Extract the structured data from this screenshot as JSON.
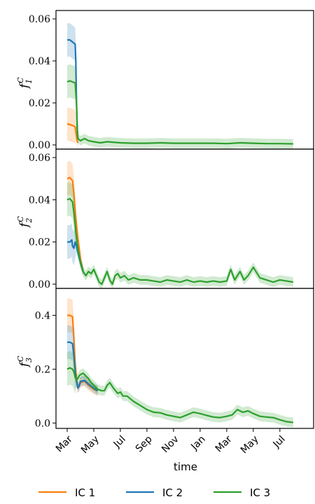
{
  "chart_data": {
    "type": "line",
    "xlabel": "time",
    "x_tick_labels": [
      "Mar",
      "May",
      "Jul",
      "Sep",
      "Nov",
      "Jan",
      "Mar",
      "May",
      "Jul"
    ],
    "x_range_months": [
      0,
      17.3
    ],
    "series_names": [
      "IC 1",
      "IC 2",
      "IC 3"
    ],
    "colors": {
      "IC 1": "#ff7f0e",
      "IC 2": "#1f77b4",
      "IC 3": "#2ca02c"
    },
    "legend_placement": "bottom-center",
    "grid": false,
    "panels": [
      {
        "ylabel_base": "f",
        "ylabel_sup": "C",
        "ylabel_sub": "1",
        "ylim": [
          -0.002,
          0.064
        ],
        "yticks": [
          0.0,
          0.02,
          0.04,
          0.06
        ],
        "ytick_labels": [
          "0.00",
          "0.02",
          "0.04",
          "0.06"
        ],
        "series": [
          {
            "name": "IC 1",
            "x": [
              0,
              0.3,
              0.5,
              0.6,
              0.7,
              0.75,
              0.8
            ],
            "y": [
              0.01,
              0.0095,
              0.009,
              0.0085,
              0.004,
              0.002,
              0.001
            ]
          },
          {
            "name": "IC 2",
            "x": [
              0,
              0.2,
              0.4,
              0.6,
              0.65,
              0.7,
              0.75,
              0.8
            ],
            "y": [
              0.05,
              0.05,
              0.049,
              0.048,
              0.04,
              0.02,
              0.008,
              0.003
            ]
          },
          {
            "name": "IC 3",
            "x": [
              0,
              0.2,
              0.4,
              0.6,
              0.7,
              0.75,
              0.8,
              1.0,
              1.3,
              1.6,
              2.0,
              2.5,
              3.0,
              4.0,
              5.0,
              6.0,
              7.0,
              8.0,
              9.0,
              10.0,
              11.0,
              12.0,
              13.0,
              14.0,
              15.0,
              16.0,
              17.0
            ],
            "y": [
              0.03,
              0.0305,
              0.03,
              0.0295,
              0.02,
              0.01,
              0.003,
              0.002,
              0.003,
              0.002,
              0.0015,
              0.001,
              0.0015,
              0.001,
              0.0008,
              0.0008,
              0.001,
              0.0008,
              0.0008,
              0.0008,
              0.0008,
              0.0006,
              0.001,
              0.0008,
              0.0006,
              0.0006,
              0.0005
            ]
          }
        ]
      },
      {
        "ylabel_base": "f",
        "ylabel_sup": "C",
        "ylabel_sub": "2",
        "ylim": [
          -0.002,
          0.064
        ],
        "yticks": [
          0.0,
          0.02,
          0.04,
          0.06
        ],
        "ytick_labels": [
          "0.00",
          "0.02",
          "0.04",
          "0.06"
        ],
        "series": [
          {
            "name": "IC 1",
            "x": [
              0,
              0.2,
              0.4,
              0.5,
              0.6,
              0.7,
              0.8,
              1.0,
              1.2
            ],
            "y": [
              0.05,
              0.0505,
              0.049,
              0.043,
              0.035,
              0.028,
              0.022,
              0.012,
              0.006
            ]
          },
          {
            "name": "IC 2",
            "x": [
              0,
              0.2,
              0.35,
              0.4,
              0.5,
              0.6,
              0.7,
              0.8,
              1.0,
              1.2
            ],
            "y": [
              0.02,
              0.02,
              0.021,
              0.018,
              0.017,
              0.02,
              0.018,
              0.015,
              0.01,
              0.006
            ]
          },
          {
            "name": "IC 3",
            "x": [
              0,
              0.2,
              0.4,
              0.5,
              0.6,
              0.7,
              0.8,
              1.0,
              1.2,
              1.4,
              1.6,
              1.8,
              2.0,
              2.2,
              2.4,
              2.6,
              2.8,
              3.0,
              3.2,
              3.4,
              3.6,
              3.8,
              4.0,
              4.3,
              4.6,
              5.0,
              5.5,
              6.0,
              6.5,
              7.0,
              7.5,
              8.0,
              8.5,
              9.0,
              9.5,
              10.0,
              10.5,
              11.0,
              11.5,
              12.0,
              12.3,
              12.6,
              13.0,
              13.3,
              13.6,
              14.0,
              14.5,
              15.0,
              15.5,
              16.0,
              16.5,
              17.0
            ],
            "y": [
              0.04,
              0.0405,
              0.039,
              0.034,
              0.028,
              0.022,
              0.017,
              0.01,
              0.006,
              0.004,
              0.006,
              0.005,
              0.007,
              0.004,
              0.001,
              0.0,
              0.003,
              0.006,
              0.002,
              0.0,
              0.004,
              0.005,
              0.003,
              0.004,
              0.002,
              0.003,
              0.002,
              0.002,
              0.0015,
              0.001,
              0.002,
              0.0015,
              0.001,
              0.002,
              0.001,
              0.0015,
              0.001,
              0.0015,
              0.001,
              0.0015,
              0.007,
              0.002,
              0.006,
              0.002,
              0.004,
              0.008,
              0.003,
              0.002,
              0.001,
              0.002,
              0.0015,
              0.001
            ]
          }
        ]
      },
      {
        "ylabel_base": "f",
        "ylabel_sup": "C",
        "ylabel_sub": "3",
        "ylim": [
          -0.02,
          0.5
        ],
        "yticks": [
          0.0,
          0.2,
          0.4
        ],
        "ytick_labels": [
          "0.0",
          "0.2",
          "0.4"
        ],
        "series": [
          {
            "name": "IC 1",
            "x": [
              0,
              0.2,
              0.4,
              0.5,
              0.6,
              0.7,
              0.8,
              0.9,
              1.0,
              1.3,
              1.6,
              2.0,
              2.3
            ],
            "y": [
              0.4,
              0.4,
              0.395,
              0.32,
              0.22,
              0.17,
              0.13,
              0.135,
              0.15,
              0.155,
              0.14,
              0.125,
              0.12
            ]
          },
          {
            "name": "IC 2",
            "x": [
              0,
              0.2,
              0.4,
              0.5,
              0.6,
              0.7,
              0.8,
              0.9,
              1.0,
              1.3,
              1.6,
              2.0,
              2.3
            ],
            "y": [
              0.3,
              0.3,
              0.295,
              0.25,
              0.19,
              0.155,
              0.13,
              0.14,
              0.155,
              0.158,
              0.145,
              0.13,
              0.12
            ]
          },
          {
            "name": "IC 3",
            "x": [
              0,
              0.2,
              0.4,
              0.5,
              0.6,
              0.7,
              0.8,
              0.9,
              1.0,
              1.2,
              1.4,
              1.6,
              1.8,
              2.0,
              2.3,
              2.6,
              2.8,
              3.0,
              3.2,
              3.5,
              3.8,
              4.0,
              4.2,
              4.5,
              5.0,
              5.5,
              6.0,
              6.5,
              7.0,
              7.5,
              8.0,
              8.5,
              9.0,
              9.5,
              10.0,
              10.5,
              11.0,
              11.5,
              12.0,
              12.4,
              12.8,
              13.2,
              13.6,
              14.0,
              14.5,
              15.0,
              15.5,
              16.0,
              16.5,
              17.0
            ],
            "y": [
              0.2,
              0.205,
              0.2,
              0.19,
              0.17,
              0.16,
              0.165,
              0.175,
              0.18,
              0.185,
              0.175,
              0.165,
              0.15,
              0.14,
              0.125,
              0.12,
              0.12,
              0.14,
              0.15,
              0.128,
              0.11,
              0.115,
              0.1,
              0.1,
              0.08,
              0.065,
              0.05,
              0.04,
              0.038,
              0.03,
              0.025,
              0.02,
              0.03,
              0.04,
              0.035,
              0.028,
              0.022,
              0.02,
              0.025,
              0.03,
              0.05,
              0.04,
              0.045,
              0.035,
              0.025,
              0.022,
              0.02,
              0.012,
              0.005,
              0.002
            ]
          }
        ]
      }
    ]
  },
  "legend": {
    "items": [
      {
        "label": "IC 1",
        "color": "#ff7f0e"
      },
      {
        "label": "IC 2",
        "color": "#1f77b4"
      },
      {
        "label": "IC 3",
        "color": "#2ca02c"
      }
    ]
  }
}
